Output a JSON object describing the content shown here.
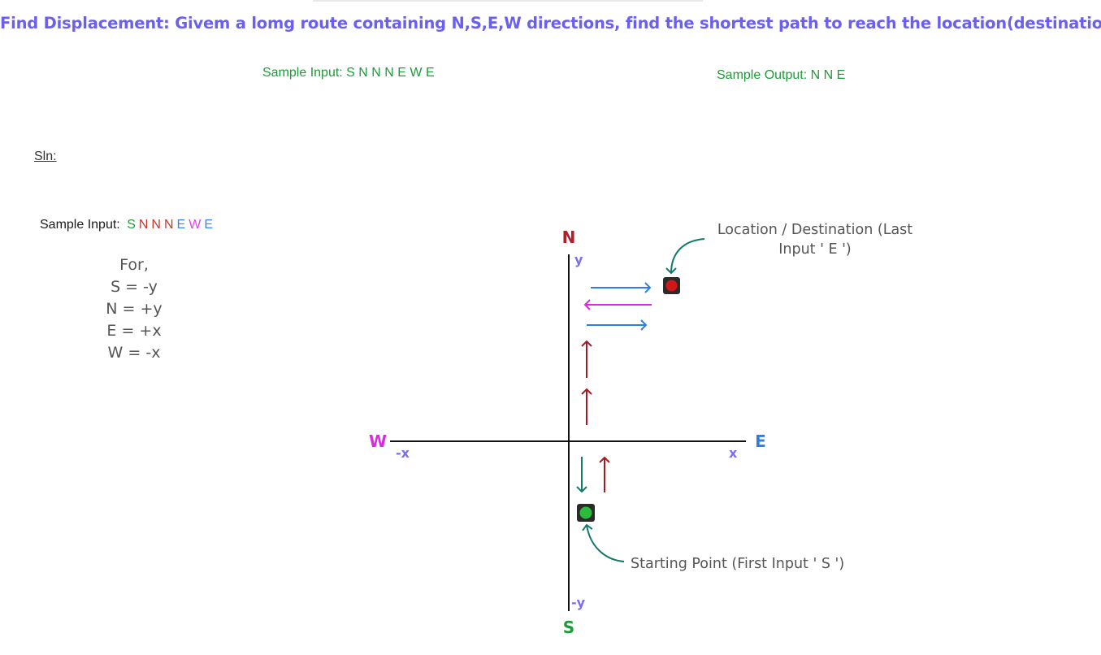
{
  "title": "Find Displacement: Givem a lomg route containing N,S,E,W directions, find the shortest path to reach the location(destination)",
  "sample_input_top": "Sample Input: S N N N E W E",
  "sample_output_top": "Sample Output: N N E",
  "solution_label": "Sln:",
  "sample_input_prefix": "Sample Input:",
  "sample_input_tokens": [
    {
      "text": "S",
      "color": "#1e9b39"
    },
    {
      "text": "N",
      "color": "#c0392b"
    },
    {
      "text": "N",
      "color": "#c0392b"
    },
    {
      "text": "N",
      "color": "#c0392b"
    },
    {
      "text": "E",
      "color": "#3b82f6"
    },
    {
      "text": "W",
      "color": "#d946ef"
    },
    {
      "text": "E",
      "color": "#3b82f6"
    }
  ],
  "legend": {
    "heading": "For,",
    "rules": [
      "S = -y",
      "N = +y",
      "E = +x",
      "W = -x"
    ]
  },
  "axes": {
    "north": "N",
    "south": "S",
    "east": "E",
    "west": "W",
    "pos_y": "y",
    "neg_y": "-y",
    "pos_x": "x",
    "neg_x": "-x"
  },
  "annotations": {
    "destination_line1": "Location / Destination (Last",
    "destination_line2": "Input ' E ')",
    "start": "Starting Point (First Input ' S ')"
  },
  "colors": {
    "title": "#6b5ff0",
    "sample_text": "#1e9b39",
    "north": "#b0202a",
    "south": "#1e9b39",
    "east": "#2f7fe0",
    "west": "#d92be0",
    "axis_sub": "#7b6ff0",
    "arrow_north": "#a01c24",
    "arrow_south": "#127a6a",
    "arrow_east": "#2f7fe0",
    "arrow_west": "#d92be0",
    "destination_dot": "#d01818",
    "start_dot": "#2cbb3a",
    "pointer": "#127a6a"
  }
}
